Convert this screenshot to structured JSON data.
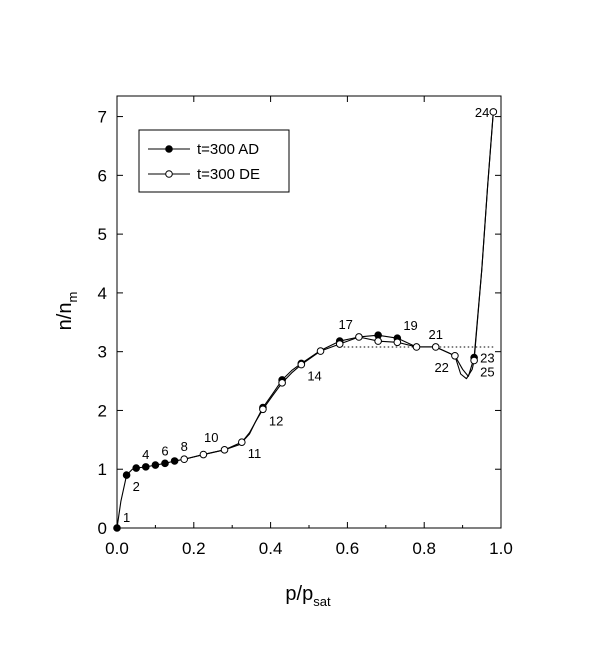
{
  "chart_data": {
    "type": "line",
    "xlabel": {
      "main": "p/p",
      "sub": "sat"
    },
    "ylabel": {
      "main": "n/n",
      "sub": "m"
    },
    "xlim": [
      0.0,
      1.0
    ],
    "ylim": [
      0,
      7.35
    ],
    "x_ticks": [
      "0.0",
      "0.2",
      "0.4",
      "0.6",
      "0.8",
      "1.0"
    ],
    "x_tick_values": [
      0.0,
      0.2,
      0.4,
      0.6,
      0.8,
      1.0
    ],
    "y_ticks": [
      "0",
      "1",
      "2",
      "3",
      "4",
      "5",
      "6",
      "7"
    ],
    "y_tick_values": [
      0,
      1,
      2,
      3,
      4,
      5,
      6,
      7
    ],
    "legend_position": "top-left",
    "series": [
      {
        "name": "t=300 AD",
        "marker": "filled-circle",
        "points": [
          [
            0.0,
            0.0
          ],
          [
            0.025,
            0.9
          ],
          [
            0.05,
            1.02
          ],
          [
            0.075,
            1.04
          ],
          [
            0.1,
            1.07
          ],
          [
            0.125,
            1.1
          ],
          [
            0.15,
            1.14
          ],
          [
            0.38,
            2.05
          ],
          [
            0.43,
            2.52
          ],
          [
            0.48,
            2.8
          ],
          [
            0.58,
            3.18
          ],
          [
            0.68,
            3.28
          ],
          [
            0.73,
            3.23
          ],
          [
            0.93,
            2.9
          ]
        ],
        "curve": [
          [
            0.0,
            0.0
          ],
          [
            0.01,
            0.45
          ],
          [
            0.025,
            0.9
          ],
          [
            0.04,
            1.0
          ],
          [
            0.05,
            1.02
          ],
          [
            0.075,
            1.04
          ],
          [
            0.1,
            1.07
          ],
          [
            0.125,
            1.1
          ],
          [
            0.15,
            1.14
          ],
          [
            0.175,
            1.17
          ],
          [
            0.225,
            1.25
          ],
          [
            0.28,
            1.33
          ],
          [
            0.32,
            1.42
          ],
          [
            0.345,
            1.6
          ],
          [
            0.36,
            1.8
          ],
          [
            0.38,
            2.05
          ],
          [
            0.405,
            2.28
          ],
          [
            0.43,
            2.52
          ],
          [
            0.455,
            2.68
          ],
          [
            0.48,
            2.8
          ],
          [
            0.53,
            3.02
          ],
          [
            0.58,
            3.18
          ],
          [
            0.63,
            3.25
          ],
          [
            0.68,
            3.28
          ],
          [
            0.73,
            3.23
          ],
          [
            0.78,
            3.08
          ],
          [
            0.83,
            3.08
          ],
          [
            0.88,
            2.93
          ],
          [
            0.9,
            2.7
          ],
          [
            0.915,
            2.58
          ],
          [
            0.93,
            2.9
          ],
          [
            0.95,
            4.4
          ],
          [
            0.965,
            5.8
          ],
          [
            0.98,
            7.08
          ]
        ]
      },
      {
        "name": "t=300 DE",
        "marker": "open-circle",
        "points": [
          [
            0.175,
            1.17
          ],
          [
            0.225,
            1.25
          ],
          [
            0.28,
            1.33
          ],
          [
            0.325,
            1.46
          ],
          [
            0.38,
            2.02
          ],
          [
            0.43,
            2.47
          ],
          [
            0.48,
            2.78
          ],
          [
            0.53,
            3.01
          ],
          [
            0.58,
            3.13
          ],
          [
            0.63,
            3.25
          ],
          [
            0.68,
            3.18
          ],
          [
            0.73,
            3.16
          ],
          [
            0.78,
            3.08
          ],
          [
            0.83,
            3.08
          ],
          [
            0.88,
            2.93
          ],
          [
            0.93,
            2.85
          ],
          [
            0.98,
            7.08
          ]
        ],
        "curve": [
          [
            0.15,
            1.14
          ],
          [
            0.175,
            1.17
          ],
          [
            0.225,
            1.25
          ],
          [
            0.28,
            1.33
          ],
          [
            0.325,
            1.46
          ],
          [
            0.345,
            1.62
          ],
          [
            0.362,
            1.82
          ],
          [
            0.38,
            2.02
          ],
          [
            0.405,
            2.25
          ],
          [
            0.43,
            2.47
          ],
          [
            0.455,
            2.64
          ],
          [
            0.48,
            2.78
          ],
          [
            0.53,
            3.01
          ],
          [
            0.58,
            3.13
          ],
          [
            0.63,
            3.25
          ],
          [
            0.68,
            3.18
          ],
          [
            0.73,
            3.16
          ],
          [
            0.78,
            3.08
          ],
          [
            0.83,
            3.08
          ],
          [
            0.88,
            2.93
          ],
          [
            0.895,
            2.62
          ],
          [
            0.91,
            2.54
          ],
          [
            0.925,
            2.7
          ],
          [
            0.93,
            2.85
          ],
          [
            0.95,
            4.4
          ],
          [
            0.965,
            5.8
          ],
          [
            0.98,
            7.08
          ]
        ]
      }
    ],
    "reference_line": {
      "style": "dotted",
      "points": [
        [
          0.58,
          3.08
        ],
        [
          0.98,
          3.08
        ]
      ]
    },
    "point_labels": [
      {
        "text": "1",
        "x": 0.0,
        "y": 0.0,
        "pos": "upper-right"
      },
      {
        "text": "2",
        "x": 0.025,
        "y": 0.9,
        "pos": "below-right"
      },
      {
        "text": "4",
        "x": 0.075,
        "y": 1.04,
        "pos": "above"
      },
      {
        "text": "6",
        "x": 0.125,
        "y": 1.1,
        "pos": "above"
      },
      {
        "text": "8",
        "x": 0.175,
        "y": 1.17,
        "pos": "above"
      },
      {
        "text": "10",
        "x": 0.28,
        "y": 1.33,
        "pos": "above-left"
      },
      {
        "text": "11",
        "x": 0.325,
        "y": 1.46,
        "pos": "below-right"
      },
      {
        "text": "12",
        "x": 0.38,
        "y": 2.02,
        "pos": "below-right"
      },
      {
        "text": "14",
        "x": 0.48,
        "y": 2.78,
        "pos": "below-right"
      },
      {
        "text": "17",
        "x": 0.63,
        "y": 3.25,
        "pos": "above-left"
      },
      {
        "text": "19",
        "x": 0.73,
        "y": 3.23,
        "pos": "above-right"
      },
      {
        "text": "21",
        "x": 0.83,
        "y": 3.08,
        "pos": "above"
      },
      {
        "text": "22",
        "x": 0.88,
        "y": 2.93,
        "pos": "below-left"
      },
      {
        "text": "23",
        "x": 0.93,
        "y": 2.9,
        "pos": "right"
      },
      {
        "text": "25",
        "x": 0.93,
        "y": 2.85,
        "pos": "below-right"
      },
      {
        "text": "24",
        "x": 0.98,
        "y": 7.08,
        "pos": "left"
      }
    ]
  }
}
